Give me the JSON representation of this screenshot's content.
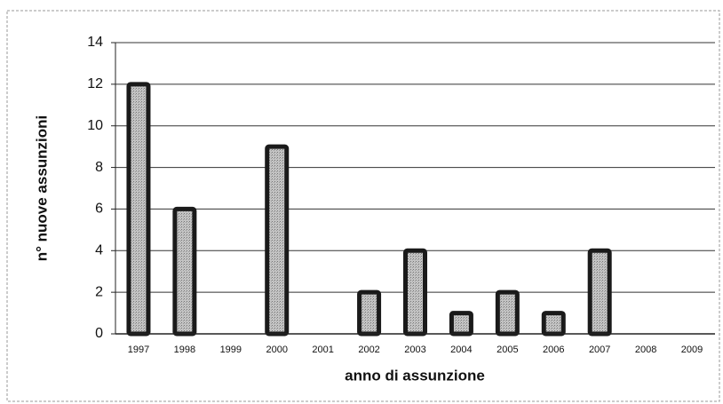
{
  "chart_data": {
    "type": "bar",
    "xlabel": "anno di assunzione",
    "ylabel": "n° nuove assunzioni",
    "categories": [
      "1997",
      "1998",
      "1999",
      "2000",
      "2001",
      "2002",
      "2003",
      "2004",
      "2005",
      "2006",
      "2007",
      "2008",
      "2009"
    ],
    "values": [
      12,
      6,
      0,
      9,
      0,
      2,
      4,
      1,
      2,
      1,
      4,
      0,
      0
    ],
    "color": "#b0b0b0",
    "ylim": [
      0,
      14
    ],
    "yticks": [
      0,
      2,
      4,
      6,
      8,
      10,
      12,
      14
    ],
    "grid": true
  }
}
